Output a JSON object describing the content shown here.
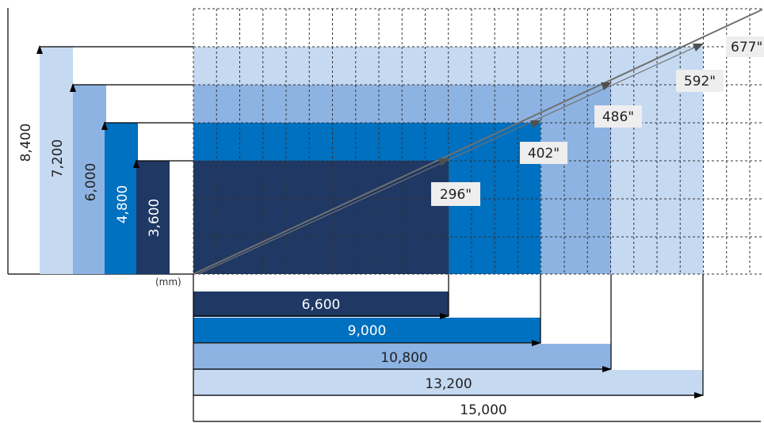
{
  "unit_label": "(mm)",
  "colors": {
    "tier1": "#c5d9f1",
    "tier2": "#8db3e2",
    "tier3": "#0070c0",
    "tier4": "#1f3864",
    "grid": "#333333",
    "diagonal": "#707070",
    "badge_bg": "#eeeeee"
  },
  "sizes": [
    {
      "height_label": "8,400",
      "width_label": "15,000",
      "diagonal_label": "677\"",
      "height_mm": 8400,
      "width_mm": 15000,
      "diagonal_in": 677
    },
    {
      "height_label": "7,200",
      "width_label": "13,200",
      "diagonal_label": "592\"",
      "height_mm": 7200,
      "width_mm": 13200,
      "diagonal_in": 592
    },
    {
      "height_label": "6,000",
      "width_label": "10,800",
      "diagonal_label": "486\"",
      "height_mm": 6000,
      "width_mm": 10800,
      "diagonal_in": 486
    },
    {
      "height_label": "4,800",
      "width_label": "9,000",
      "diagonal_label": "402\"",
      "height_mm": 4800,
      "width_mm": 9000,
      "diagonal_in": 402
    },
    {
      "height_label": "3,600",
      "width_label": "6,600",
      "diagonal_label": "296\"",
      "height_mm": 3600,
      "width_mm": 6600,
      "diagonal_in": 296
    }
  ]
}
